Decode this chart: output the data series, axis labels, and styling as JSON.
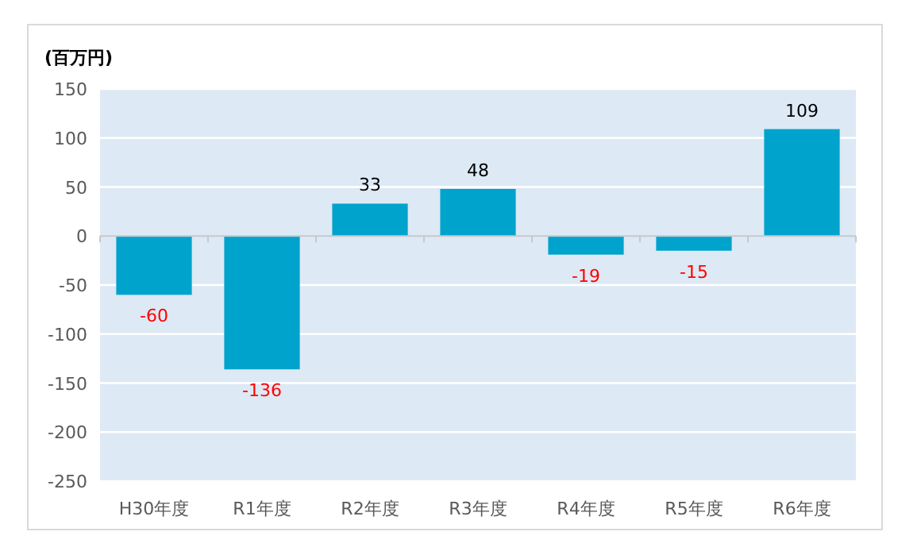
{
  "chart_data": {
    "type": "bar",
    "ylabel": "(百万円)",
    "categories": [
      "H30年度",
      "R1年度",
      "R2年度",
      "R3年度",
      "R4年度",
      "R5年度",
      "R6年度"
    ],
    "values": [
      -60,
      -136,
      33,
      48,
      -19,
      -15,
      109
    ],
    "color": "#00a3cc",
    "ylim": [
      -250,
      150
    ],
    "yticks": [
      -250,
      -200,
      -150,
      -100,
      -50,
      0,
      50,
      100,
      150
    ],
    "grid": "y",
    "data_labels": true
  }
}
